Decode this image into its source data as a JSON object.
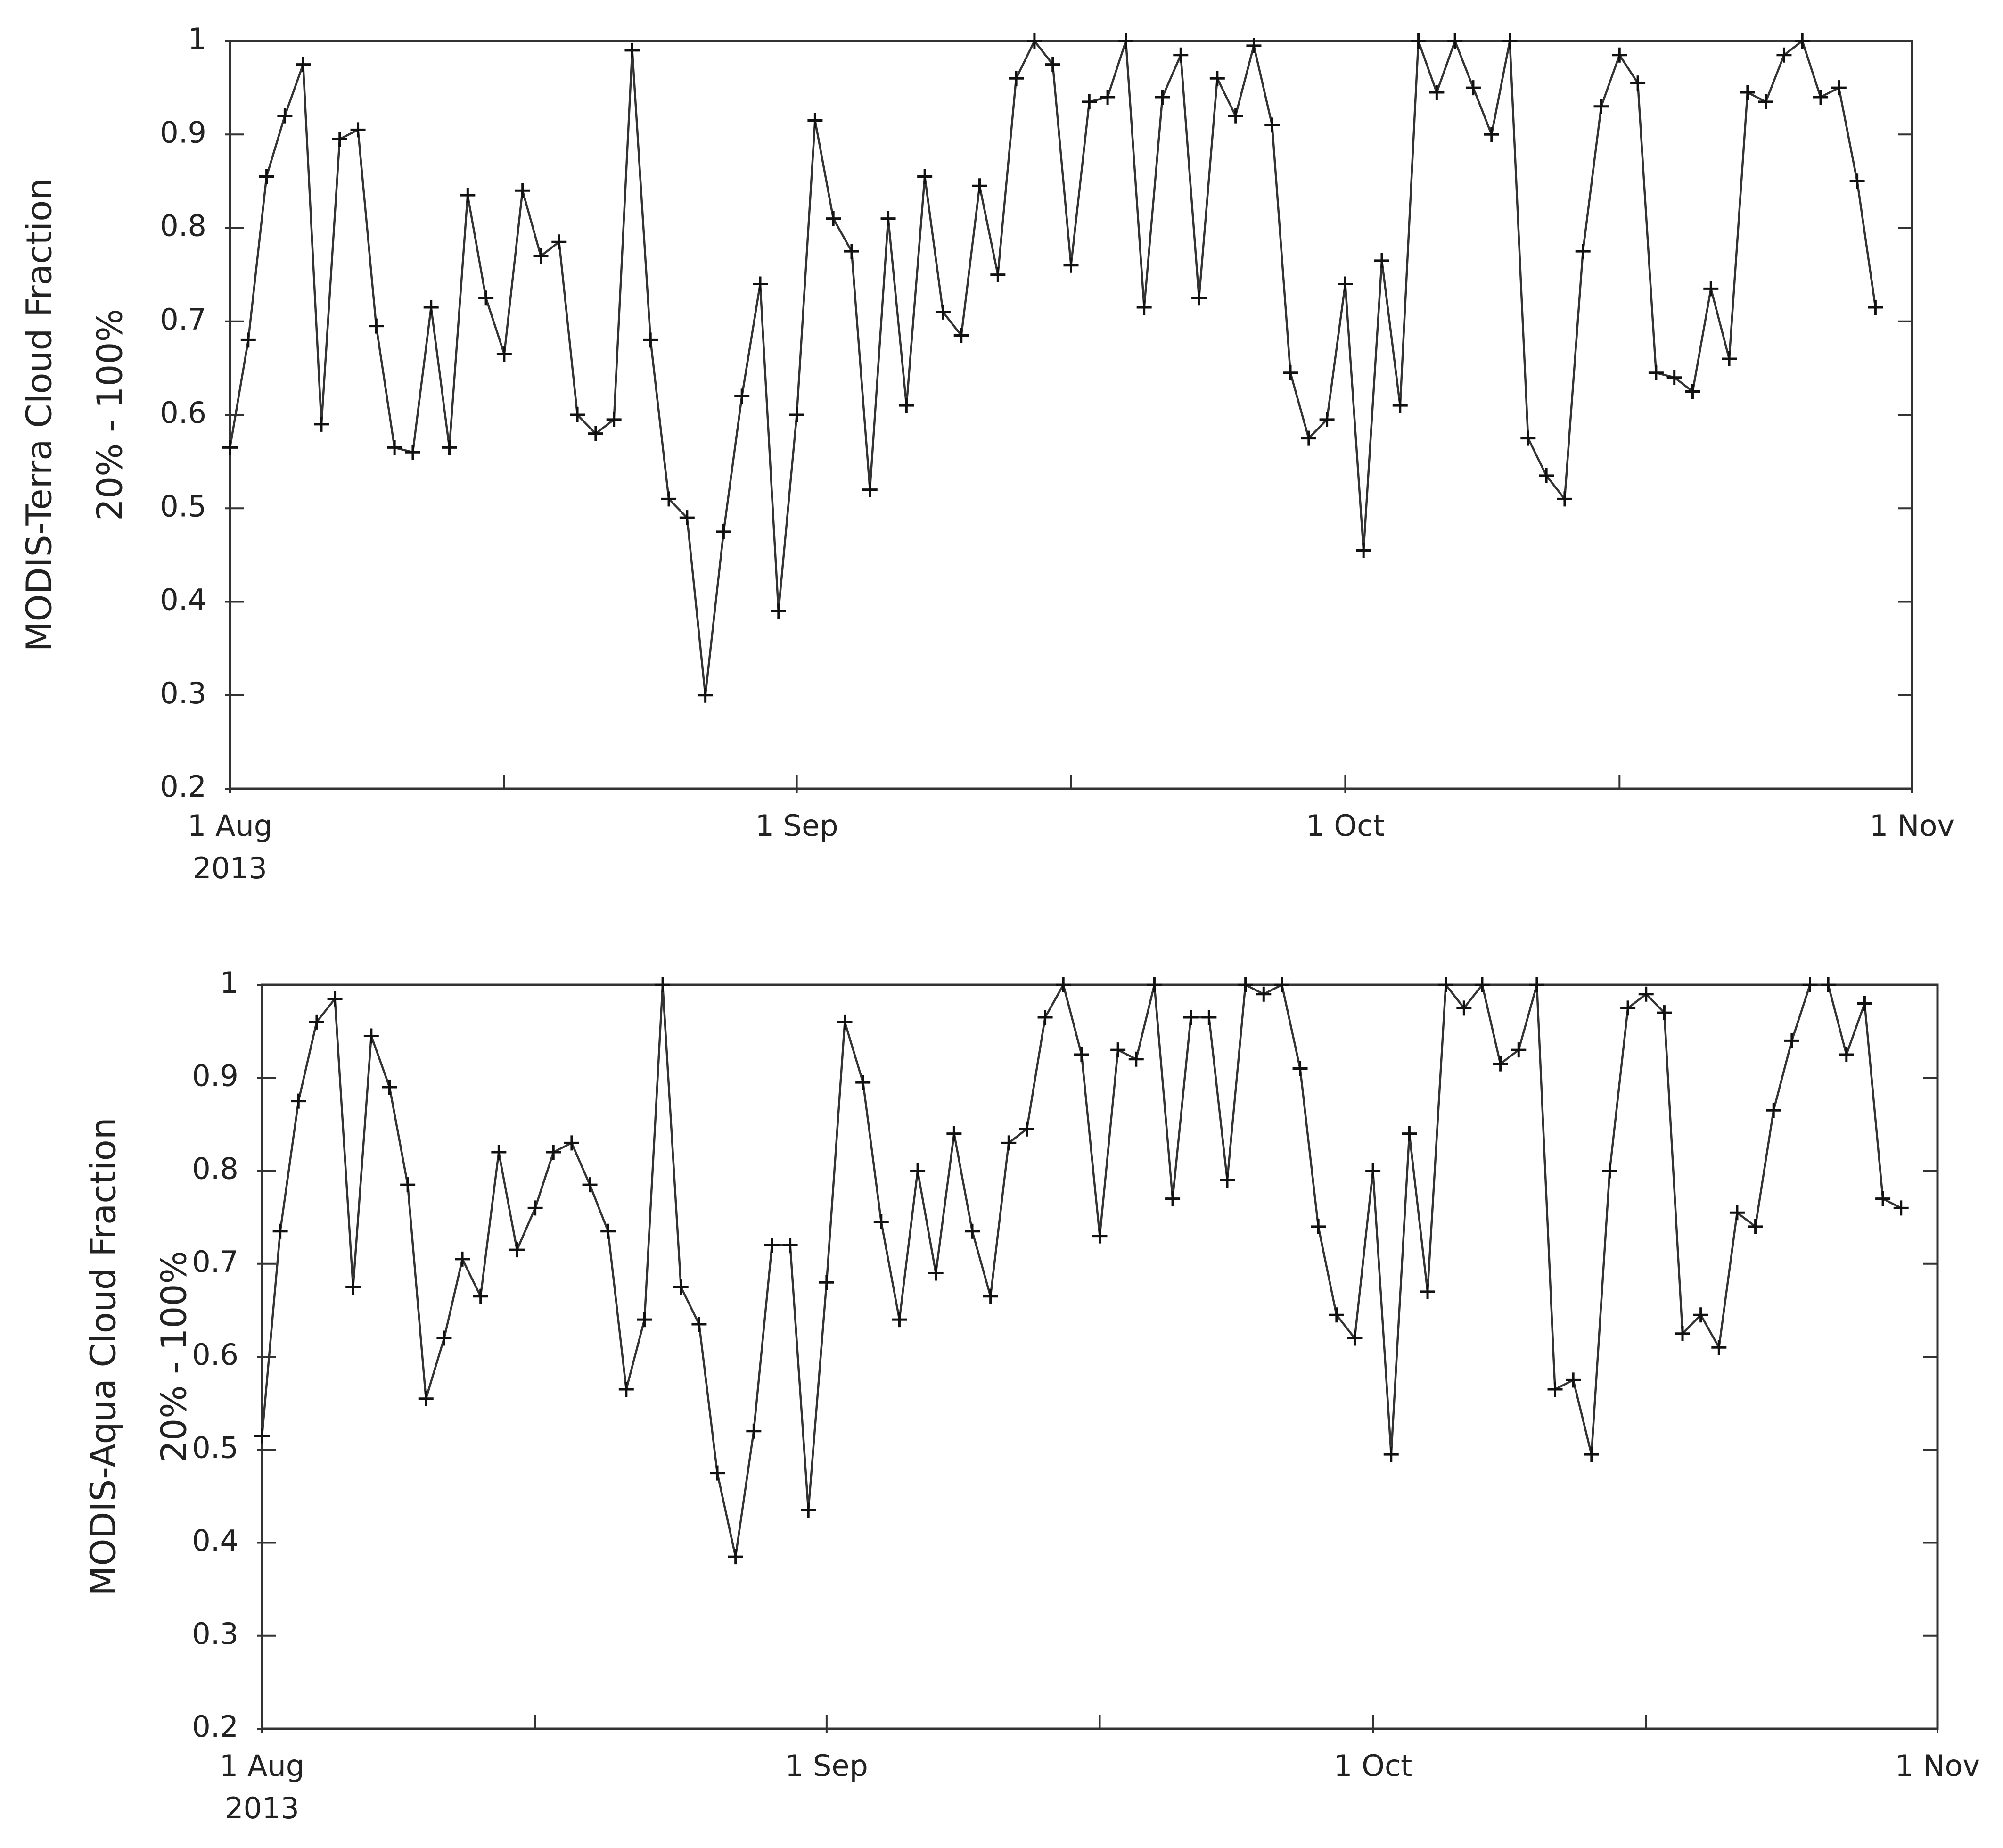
{
  "chart_data": [
    {
      "type": "line",
      "ylabel": [
        "MODIS-Terra Cloud Fraction",
        "20% - 100%"
      ],
      "x": [
        "2013-08-01",
        "2013-08-02",
        "2013-08-03",
        "2013-08-04",
        "2013-08-05",
        "2013-08-06",
        "2013-08-07",
        "2013-08-08",
        "2013-08-09",
        "2013-08-10",
        "2013-08-11",
        "2013-08-12",
        "2013-08-13",
        "2013-08-14",
        "2013-08-15",
        "2013-08-16",
        "2013-08-17",
        "2013-08-18",
        "2013-08-19",
        "2013-08-20",
        "2013-08-21",
        "2013-08-22",
        "2013-08-23",
        "2013-08-24",
        "2013-08-25",
        "2013-08-26",
        "2013-08-27",
        "2013-08-28",
        "2013-08-29",
        "2013-08-30",
        "2013-08-31",
        "2013-09-01",
        "2013-09-02",
        "2013-09-03",
        "2013-09-04",
        "2013-09-05",
        "2013-09-06",
        "2013-09-07",
        "2013-09-08",
        "2013-09-09",
        "2013-09-10",
        "2013-09-11",
        "2013-09-12",
        "2013-09-13",
        "2013-09-14",
        "2013-09-15",
        "2013-09-16",
        "2013-09-17",
        "2013-09-18",
        "2013-09-19",
        "2013-09-20",
        "2013-09-21",
        "2013-09-22",
        "2013-09-23",
        "2013-09-24",
        "2013-09-25",
        "2013-09-26",
        "2013-09-27",
        "2013-09-28",
        "2013-09-29",
        "2013-09-30",
        "2013-10-01",
        "2013-10-02",
        "2013-10-03",
        "2013-10-04",
        "2013-10-05",
        "2013-10-06",
        "2013-10-07",
        "2013-10-08",
        "2013-10-09",
        "2013-10-10",
        "2013-10-11",
        "2013-10-12",
        "2013-10-13",
        "2013-10-14",
        "2013-10-15",
        "2013-10-16",
        "2013-10-17",
        "2013-10-18",
        "2013-10-19",
        "2013-10-20",
        "2013-10-21",
        "2013-10-22",
        "2013-10-23",
        "2013-10-24",
        "2013-10-25",
        "2013-10-26",
        "2013-10-27",
        "2013-10-28",
        "2013-10-29",
        "2013-10-30"
      ],
      "values": [
        0.565,
        0.68,
        0.855,
        0.92,
        0.975,
        0.59,
        0.895,
        0.905,
        0.695,
        0.565,
        0.56,
        0.715,
        0.565,
        0.835,
        0.725,
        0.665,
        0.84,
        0.77,
        0.785,
        0.6,
        0.58,
        0.595,
        0.99,
        0.68,
        0.51,
        0.49,
        0.3,
        0.475,
        0.62,
        0.74,
        0.39,
        0.6,
        0.915,
        0.81,
        0.775,
        0.52,
        0.81,
        0.61,
        0.855,
        0.71,
        0.685,
        0.845,
        0.75,
        0.96,
        1.0,
        0.975,
        0.76,
        0.935,
        0.94,
        1.0,
        0.715,
        0.94,
        0.985,
        0.725,
        0.96,
        0.92,
        0.995,
        0.91,
        0.645,
        0.575,
        0.595,
        0.74,
        0.455,
        0.765,
        0.61,
        1.0,
        0.945,
        1.0,
        0.95,
        0.9,
        1.0,
        0.575,
        0.535,
        0.51,
        0.775,
        0.93,
        0.985,
        0.955,
        0.645,
        0.64,
        0.625,
        0.735,
        0.66,
        0.945,
        0.935,
        0.985,
        1.0,
        0.94,
        0.95,
        0.85,
        0.715
      ],
      "color": "#333333",
      "marker": "+",
      "xlim": [
        "2013-08-01",
        "2013-11-01"
      ],
      "xticks": [
        {
          "value": "2013-08-01",
          "label": "1 Aug"
        },
        {
          "value": "2013-09-01",
          "label": "1 Sep"
        },
        {
          "value": "2013-10-01",
          "label": "1 Oct"
        },
        {
          "value": "2013-11-01",
          "label": "1 Nov"
        }
      ],
      "x_sublabel": "2013",
      "xminorticks": [
        "2013-08-16",
        "2013-09-16",
        "2013-10-16"
      ],
      "ylim": [
        0.2,
        1
      ],
      "yticks": [
        0.2,
        0.3,
        0.4,
        0.5,
        0.6,
        0.7,
        0.8,
        0.9,
        1
      ]
    },
    {
      "type": "line",
      "ylabel": [
        "MODIS-Aqua Cloud Fraction",
        "20% - 100%"
      ],
      "x": [
        "2013-08-01",
        "2013-08-02",
        "2013-08-03",
        "2013-08-04",
        "2013-08-05",
        "2013-08-06",
        "2013-08-07",
        "2013-08-08",
        "2013-08-09",
        "2013-08-10",
        "2013-08-11",
        "2013-08-12",
        "2013-08-13",
        "2013-08-14",
        "2013-08-15",
        "2013-08-16",
        "2013-08-17",
        "2013-08-18",
        "2013-08-19",
        "2013-08-20",
        "2013-08-21",
        "2013-08-22",
        "2013-08-23",
        "2013-08-24",
        "2013-08-25",
        "2013-08-26",
        "2013-08-27",
        "2013-08-28",
        "2013-08-29",
        "2013-08-30",
        "2013-08-31",
        "2013-09-01",
        "2013-09-02",
        "2013-09-03",
        "2013-09-04",
        "2013-09-05",
        "2013-09-06",
        "2013-09-07",
        "2013-09-08",
        "2013-09-09",
        "2013-09-10",
        "2013-09-11",
        "2013-09-12",
        "2013-09-13",
        "2013-09-14",
        "2013-09-15",
        "2013-09-16",
        "2013-09-17",
        "2013-09-18",
        "2013-09-19",
        "2013-09-20",
        "2013-09-21",
        "2013-09-22",
        "2013-09-23",
        "2013-09-24",
        "2013-09-25",
        "2013-09-26",
        "2013-09-27",
        "2013-09-28",
        "2013-09-29",
        "2013-09-30",
        "2013-10-01",
        "2013-10-02",
        "2013-10-03",
        "2013-10-04",
        "2013-10-05",
        "2013-10-06",
        "2013-10-07",
        "2013-10-08",
        "2013-10-09",
        "2013-10-10",
        "2013-10-11",
        "2013-10-12",
        "2013-10-13",
        "2013-10-14",
        "2013-10-15",
        "2013-10-16",
        "2013-10-17",
        "2013-10-18",
        "2013-10-19",
        "2013-10-20",
        "2013-10-21",
        "2013-10-22",
        "2013-10-23",
        "2013-10-24",
        "2013-10-25",
        "2013-10-26",
        "2013-10-27",
        "2013-10-28",
        "2013-10-29",
        "2013-10-30"
      ],
      "values": [
        0.515,
        0.735,
        0.875,
        0.96,
        0.985,
        0.675,
        0.945,
        0.89,
        0.785,
        0.555,
        0.62,
        0.705,
        0.665,
        0.82,
        0.715,
        0.76,
        0.82,
        0.83,
        0.785,
        0.735,
        0.565,
        0.64,
        1.0,
        0.675,
        0.635,
        0.475,
        0.385,
        0.52,
        0.72,
        0.72,
        0.435,
        0.68,
        0.96,
        0.895,
        0.745,
        0.64,
        0.8,
        0.69,
        0.84,
        0.735,
        0.665,
        0.83,
        0.845,
        0.965,
        1.0,
        0.925,
        0.73,
        0.93,
        0.92,
        1.0,
        0.77,
        0.965,
        0.965,
        0.79,
        1.0,
        0.99,
        1.0,
        0.91,
        0.74,
        0.645,
        0.62,
        0.8,
        0.495,
        0.84,
        0.67,
        1.0,
        0.975,
        1.0,
        0.915,
        0.93,
        1.0,
        0.565,
        0.575,
        0.495,
        0.8,
        0.975,
        0.99,
        0.97,
        0.625,
        0.645,
        0.61,
        0.755,
        0.74,
        0.865,
        0.94,
        1.0,
        1.0,
        0.925,
        0.98,
        0.77,
        0.76
      ],
      "color": "#333333",
      "marker": "+",
      "xlim": [
        "2013-08-01",
        "2013-11-01"
      ],
      "xticks": [
        {
          "value": "2013-08-01",
          "label": "1 Aug"
        },
        {
          "value": "2013-09-01",
          "label": "1 Sep"
        },
        {
          "value": "2013-10-01",
          "label": "1 Oct"
        },
        {
          "value": "2013-11-01",
          "label": "1 Nov"
        }
      ],
      "x_sublabel": "2013",
      "xminorticks": [
        "2013-08-16",
        "2013-09-16",
        "2013-10-16"
      ],
      "ylim": [
        0.2,
        1
      ],
      "yticks": [
        0.2,
        0.3,
        0.4,
        0.5,
        0.6,
        0.7,
        0.8,
        0.9,
        1
      ]
    }
  ]
}
